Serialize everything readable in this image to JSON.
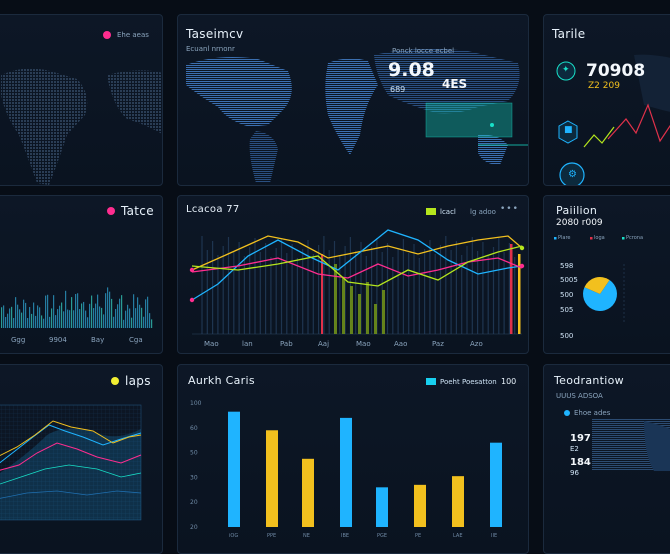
{
  "colors": {
    "bg": "#070d16",
    "panel": "#0d1726",
    "cyan": "#1fb4ff",
    "yellow": "#f2c01e",
    "magenta": "#ff2d8f",
    "lime": "#b5e61d",
    "teal": "#18e0c8",
    "red": "#e0314a"
  },
  "panels": {
    "top_left": {
      "legend": "Ehe aeas"
    },
    "top_center": {
      "title": "Taseimcv",
      "sub": "Ecuanl nrnonr",
      "legend": "Ponck locce ecbel",
      "value_main": "9.08",
      "value_side": "4ES",
      "value_small": "689"
    },
    "top_right": {
      "title": "Tarile",
      "value_main": "70908",
      "value_sub": "Z2 209",
      "mini": "",
      "icon_lock": "lock-icon",
      "icon_gear": "gear-icon"
    },
    "mid_left": {
      "title": "Tatce",
      "x_labels": [
        "Ggg",
        "9904",
        "Bay",
        "Cga"
      ]
    },
    "mid_center": {
      "title": "Lcacoa 77",
      "legend_label": "lcacl",
      "legend_sub": "lg adoo",
      "x_labels": [
        "Mao",
        "lan",
        "Pab",
        "Aaj",
        "Mao",
        "Aao",
        "Paz",
        "Azo"
      ]
    },
    "mid_right": {
      "title": "Paiilion",
      "value": "2080 r009",
      "legend": [
        "Plare",
        "loga",
        "Pcrona"
      ],
      "labels": [
        "598",
        "5005",
        "500",
        "505",
        "500"
      ],
      "pie_values": [
        72,
        28
      ]
    },
    "bot_left": {
      "title": "laps"
    },
    "bot_center": {
      "title": "Aurkh Caris",
      "legend_label": "Poeht Poesatton",
      "legend_value": "100",
      "y_ticks": [
        "100",
        "60",
        "50",
        "30",
        "20",
        "20"
      ],
      "bars": [
        {
          "value": 93,
          "color": "cyan",
          "label": "iOG"
        },
        {
          "value": 78,
          "color": "yellow",
          "label": "PPE"
        },
        {
          "value": 55,
          "color": "yellow",
          "label": "NE"
        },
        {
          "value": 88,
          "color": "cyan",
          "label": "IBE"
        },
        {
          "value": 32,
          "color": "cyan",
          "label": "PGE"
        },
        {
          "value": 34,
          "color": "yellow",
          "label": "PE"
        },
        {
          "value": 41,
          "color": "yellow",
          "label": "LAE"
        },
        {
          "value": 68,
          "color": "cyan",
          "label": "IIE"
        }
      ]
    },
    "bot_right": {
      "title": "Teodrantiow",
      "sub": "UUUS ADSOA",
      "legend": "Ehoe ades",
      "v1": "197",
      "v1s": "E2",
      "v2": "184",
      "v2s": "96"
    }
  }
}
